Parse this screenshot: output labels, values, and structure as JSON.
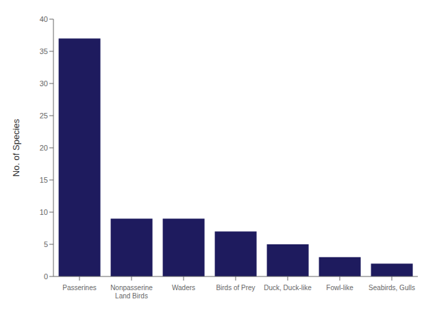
{
  "chart_data": {
    "type": "bar",
    "categories": [
      "Passerines",
      "Nonpasserine\nLand Birds",
      "Waders",
      "Birds of Prey",
      "Duck, Duck-like",
      "Fowl-like",
      "Seabirds, Gulls"
    ],
    "values": [
      37,
      9,
      9,
      7,
      5,
      3,
      2
    ],
    "color": "#1e1b5e",
    "ylabel": "No. of Species",
    "ylim": [
      0,
      40
    ],
    "yticks": [
      0,
      5,
      10,
      15,
      20,
      25,
      30,
      35,
      40
    ],
    "grid": false
  }
}
